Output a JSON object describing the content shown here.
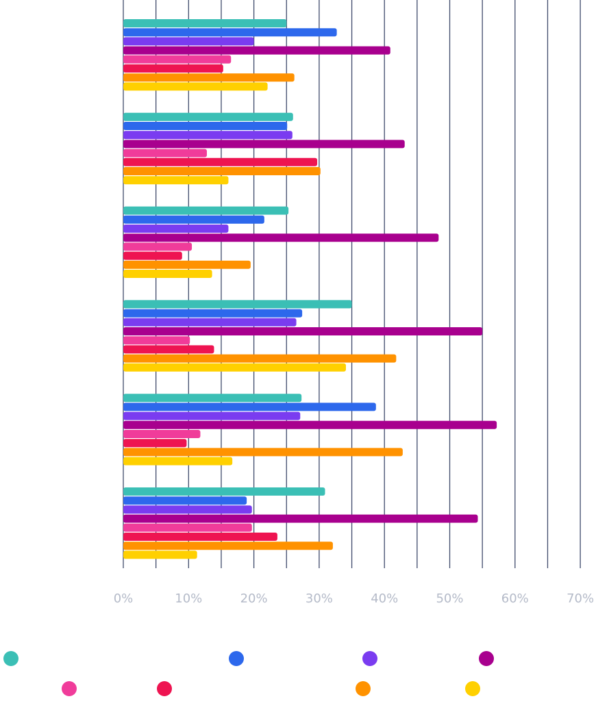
{
  "chart_data": {
    "type": "bar",
    "orientation": "horizontal",
    "categories": [
      "",
      "",
      "",
      "",
      "",
      ""
    ],
    "xlim": [
      0,
      70
    ],
    "xticks": [
      "0%",
      "10%",
      "20%",
      "30%",
      "40%",
      "50%",
      "60%",
      "70%"
    ],
    "grid": true,
    "legend_placement": "bottom",
    "series": [
      {
        "color": "#3bbfb5",
        "values": [
          25.0,
          26.0,
          25.3,
          35.0,
          27.3,
          30.9
        ]
      },
      {
        "color": "#2d68ec",
        "values": [
          32.7,
          25.1,
          21.6,
          27.4,
          38.7,
          18.9
        ]
      },
      {
        "color": "#7a3cf0",
        "values": [
          20.0,
          25.9,
          16.1,
          26.5,
          27.1,
          19.7
        ]
      },
      {
        "color": "#a8008e",
        "values": [
          40.9,
          43.1,
          48.3,
          55.0,
          57.2,
          54.3
        ]
      },
      {
        "color": "#f03c9a",
        "values": [
          16.5,
          12.8,
          10.5,
          10.2,
          11.8,
          19.7
        ]
      },
      {
        "color": "#ee1451",
        "values": [
          15.3,
          29.7,
          9.0,
          13.9,
          9.7,
          23.6
        ]
      },
      {
        "color": "#ff9200",
        "values": [
          26.2,
          30.2,
          19.5,
          41.8,
          42.8,
          32.1
        ]
      },
      {
        "color": "#ffd000",
        "values": [
          22.1,
          16.1,
          13.6,
          34.1,
          16.7,
          11.3
        ]
      }
    ]
  },
  "legend": {
    "items": [
      {
        "color": "#3bbfb5",
        "icon": "circle-marker"
      },
      {
        "color": "#2d68ec",
        "icon": "circle-marker"
      },
      {
        "color": "#7a3cf0",
        "icon": "circle-marker"
      },
      {
        "color": "#a8008e",
        "icon": "circle-marker"
      },
      {
        "color": "#f03c9a",
        "icon": "circle-marker"
      },
      {
        "color": "#ee1451",
        "icon": "circle-marker"
      },
      {
        "color": "#ff9200",
        "icon": "circle-marker"
      },
      {
        "color": "#ffd000",
        "icon": "circle-marker"
      }
    ]
  },
  "colors": {
    "gridline": "#3f4a6b",
    "tick_label": "#b4bac8",
    "background": "#ffffff"
  }
}
